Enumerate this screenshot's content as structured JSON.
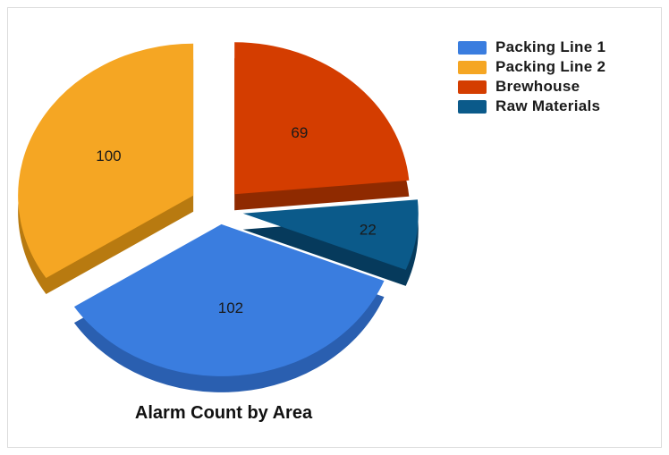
{
  "chart_data": {
    "type": "pie",
    "title": "Alarm Count by Area",
    "slices": [
      {
        "label": "Packing Line 1",
        "value": 102,
        "color": "#3a7ddf",
        "side": "#2a5fb0"
      },
      {
        "label": "Packing Line 2",
        "value": 100,
        "color": "#f5a623",
        "side": "#b87a10"
      },
      {
        "label": "Brewhouse",
        "value": 69,
        "color": "#d43d00",
        "side": "#8f2a00"
      },
      {
        "label": "Raw Materials",
        "value": 22,
        "color": "#0b5a8a",
        "side": "#063a5c"
      }
    ],
    "legend_position": "top-right",
    "exploded": true,
    "three_d": true
  }
}
